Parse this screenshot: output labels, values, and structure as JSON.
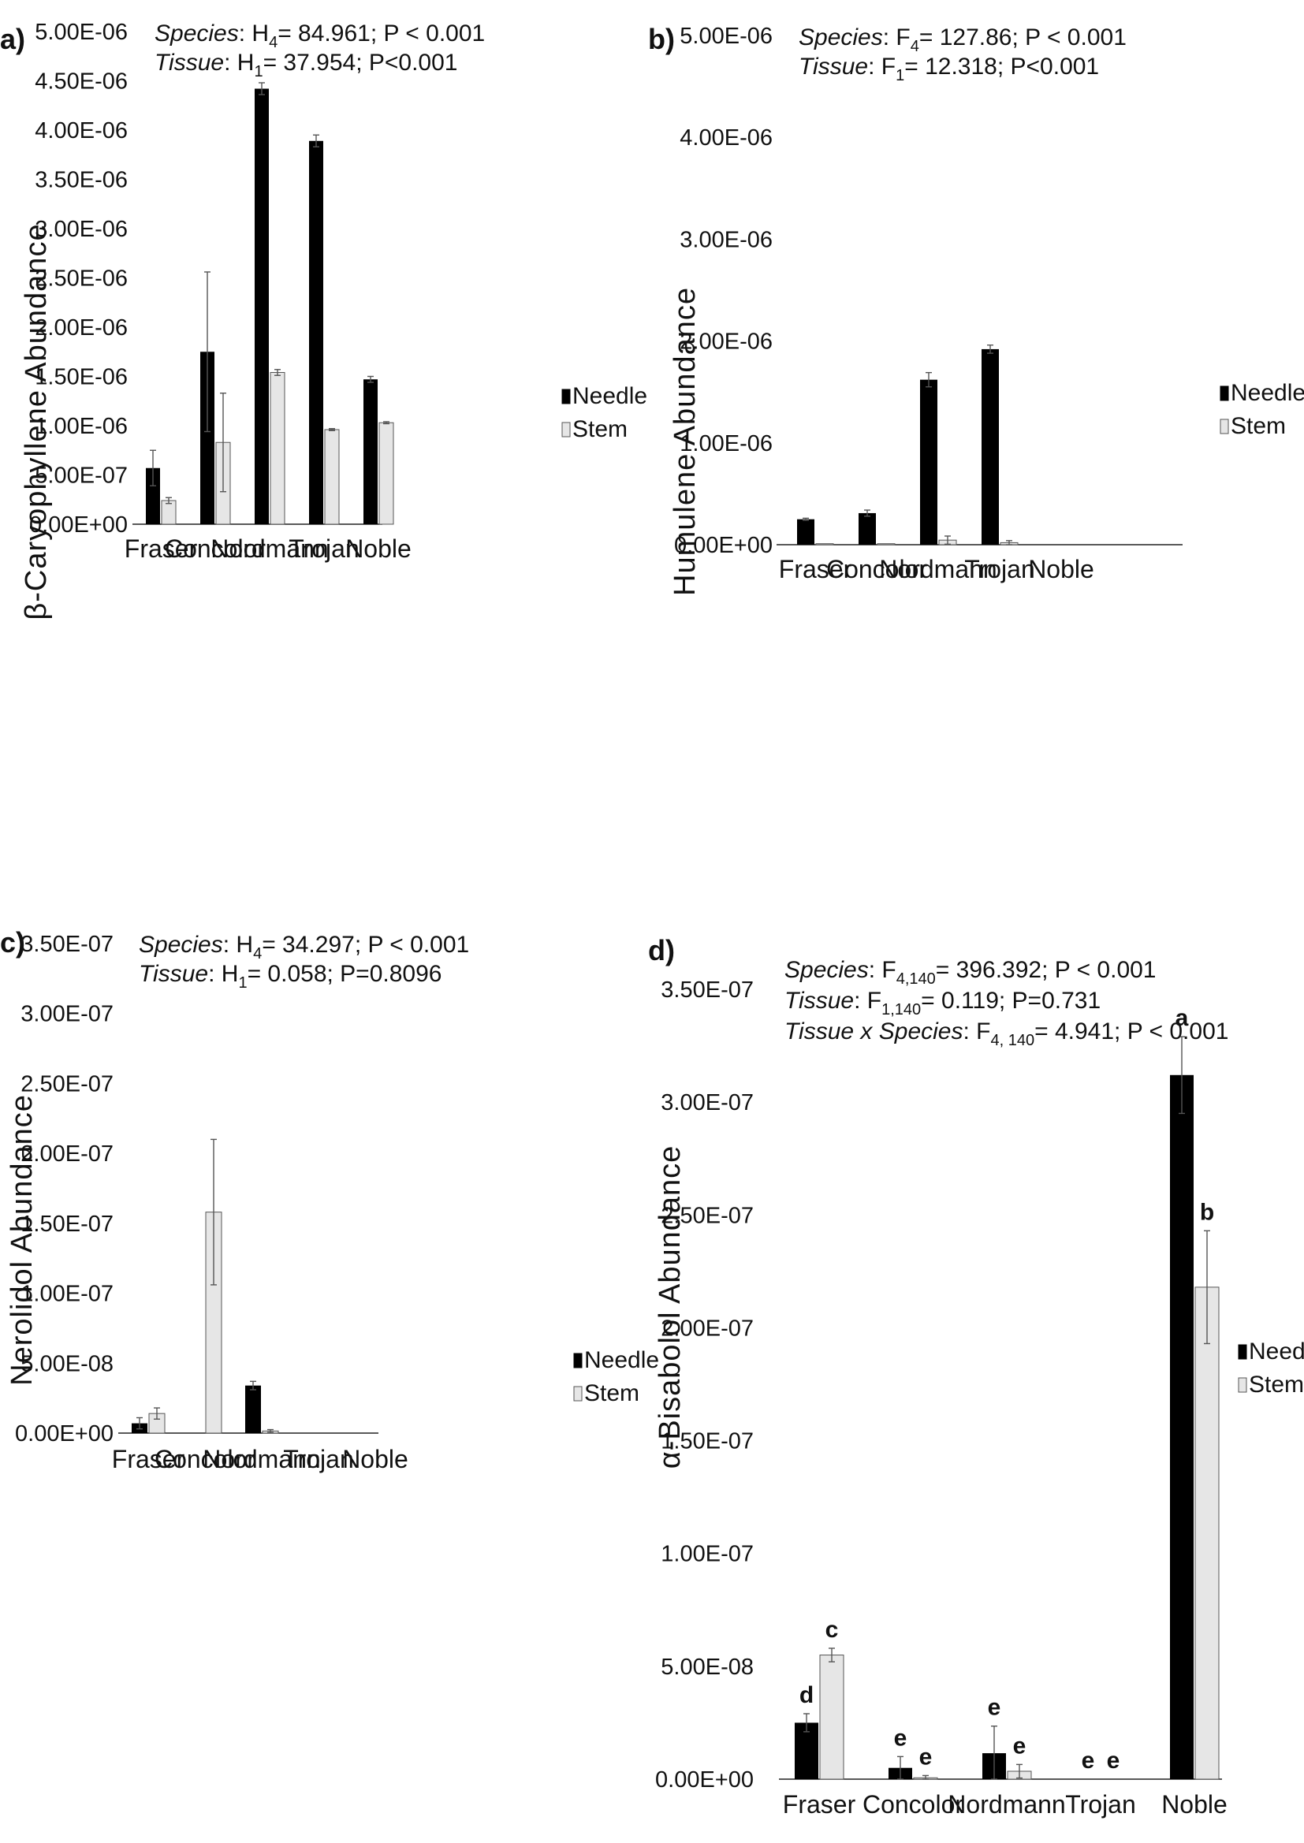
{
  "colors": {
    "needle": "#000000",
    "stem": "#e6e6e6",
    "stem_border": "#555555",
    "axis": "#222222",
    "error": "#555555"
  },
  "legend": [
    "Needle",
    "Stem"
  ],
  "chart_data": [
    {
      "panel_label": "a)",
      "type": "bar",
      "ylabel": "β-Caryophyllene Abundance",
      "yticks": [
        "0.00E+00",
        "5.00E-07",
        "1.00E-06",
        "1.50E-06",
        "2.00E-06",
        "2.50E-06",
        "3.00E-06",
        "3.50E-06",
        "4.00E-06",
        "4.50E-06",
        "5.00E-06"
      ],
      "ylim": [
        0,
        5e-06
      ],
      "categories": [
        "Fraser",
        "Concolor",
        "Nordmann",
        "Trojan",
        "Noble"
      ],
      "series": [
        {
          "name": "Needle",
          "values": [
            5.7e-07,
            1.75e-06,
            4.42e-06,
            3.89e-06,
            1.47e-06
          ],
          "errors": [
            1.8e-07,
            8.1e-07,
            6e-08,
            6e-08,
            3e-08
          ]
        },
        {
          "name": "Stem",
          "values": [
            2.4e-07,
            8.3e-07,
            1.54e-06,
            9.6e-07,
            1.03e-06
          ],
          "errors": [
            3e-08,
            5e-07,
            3e-08,
            1e-08,
            1e-08
          ]
        }
      ],
      "stats": [
        {
          "factor": "Species",
          "test": "H",
          "sub": "4",
          "rest": "= 84.961; P < 0.001"
        },
        {
          "factor": "Tissue",
          "test": "H",
          "sub": "1",
          "rest": "=   37.954; P<0.001"
        }
      ],
      "letters": null
    },
    {
      "panel_label": "b)",
      "type": "bar",
      "ylabel": "Humulene Abundance",
      "yticks": [
        "0.00E+00",
        "1.00E-06",
        "2.00E-06",
        "3.00E-06",
        "4.00E-06",
        "5.00E-06"
      ],
      "ylim": [
        0,
        5e-06
      ],
      "categories": [
        "Fraser",
        "Concolor",
        "Nordmann",
        "Trojan",
        "Noble"
      ],
      "series": [
        {
          "name": "Needle",
          "values": [
            2.5e-07,
            3.1e-07,
            1.62e-06,
            1.92e-06,
            0
          ],
          "errors": [
            1e-08,
            3e-08,
            7e-08,
            4e-08,
            0
          ]
        },
        {
          "name": "Stem",
          "values": [
            1e-08,
            1e-08,
            4.5e-08,
            2e-08,
            0
          ],
          "errors": [
            0,
            0,
            4e-08,
            2e-08,
            0
          ]
        }
      ],
      "stats": [
        {
          "factor": "Species",
          "test": "F",
          "sub": "4",
          "rest": "= 127.86; P < 0.001"
        },
        {
          "factor": "Tissue",
          "test": "F",
          "sub": "1",
          "rest": "=   12.318; P<0.001"
        }
      ],
      "letters": null
    },
    {
      "panel_label": "c)",
      "type": "bar",
      "ylabel": "Nerolidol Abundance",
      "yticks": [
        "0.00E+00",
        "5.00E-08",
        "1.00E-07",
        "1.50E-07",
        "2.00E-07",
        "2.50E-07",
        "3.00E-07",
        "3.50E-07"
      ],
      "ylim": [
        0,
        3.5e-07
      ],
      "categories": [
        "Fraser",
        "Concolor",
        "Nordmann",
        "Trojan",
        "Noble"
      ],
      "series": [
        {
          "name": "Needle",
          "values": [
            7e-09,
            0,
            3.4e-08,
            0,
            0
          ],
          "errors": [
            4e-09,
            0,
            3e-09,
            0,
            0
          ]
        },
        {
          "name": "Stem",
          "values": [
            1.4e-08,
            1.58e-07,
            1.5e-09,
            0,
            0
          ],
          "errors": [
            4e-09,
            5.2e-08,
            1e-09,
            0,
            0
          ]
        }
      ],
      "stats": [
        {
          "factor": "Species",
          "test": "H",
          "sub": "4",
          "rest": "= 34.297; P < 0.001"
        },
        {
          "factor": "Tissue",
          "test": "H",
          "sub": "1",
          "rest": "=   0.058; P=0.8096"
        }
      ],
      "letters": null
    },
    {
      "panel_label": "d)",
      "type": "bar",
      "ylabel": "α-Bisabolol Abundance",
      "yticks": [
        "0.00E+00",
        "5.00E-08",
        "1.00E-07",
        "1.50E-07",
        "2.00E-07",
        "2.50E-07",
        "3.00E-07",
        "3.50E-07"
      ],
      "ylim": [
        0,
        3.5e-07
      ],
      "categories": [
        "Fraser",
        "Concolor",
        "Nordmann",
        "Trojan",
        "Noble"
      ],
      "series": [
        {
          "name": "Needle",
          "values": [
            2.5e-08,
            5e-09,
            1.15e-08,
            0,
            3.12e-07
          ],
          "errors": [
            4e-09,
            5e-09,
            1.2e-08,
            0,
            1.7e-08
          ]
        },
        {
          "name": "Stem",
          "values": [
            5.5e-08,
            6e-10,
            3.5e-09,
            0,
            2.18e-07
          ],
          "errors": [
            3e-09,
            1e-09,
            3e-09,
            0,
            2.5e-08
          ]
        }
      ],
      "stats": [
        {
          "factor": "Species",
          "test": "F",
          "sub": "4,140",
          "rest": "= 396.392; P < 0.001"
        },
        {
          "factor": "Tissue",
          "test": "F",
          "sub": "1,140",
          "rest": "=   0.119; P=0.731"
        },
        {
          "factor": "Tissue x Species",
          "test": "F",
          "sub": "4, 140",
          "rest": "= 4.941; P < 0.001"
        }
      ],
      "letters": [
        [
          "d",
          "c"
        ],
        [
          "e",
          "e"
        ],
        [
          "e",
          "e"
        ],
        [
          "e",
          "e"
        ],
        [
          "a",
          "b"
        ]
      ]
    }
  ]
}
